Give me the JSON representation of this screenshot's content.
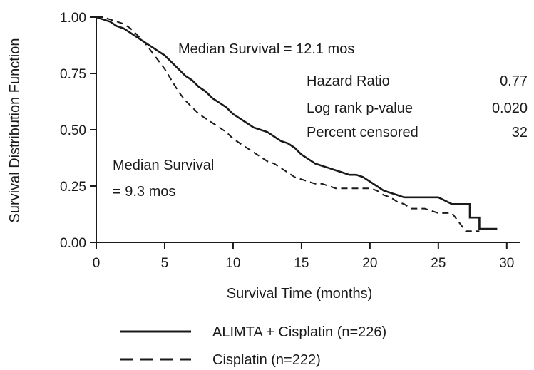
{
  "chart_data": {
    "type": "line",
    "xlabel": "Survival Time (months)",
    "ylabel": "Survival Distribution Function",
    "xlim": [
      0,
      31
    ],
    "ylim": [
      0,
      1
    ],
    "x_ticks": [
      "0",
      "5",
      "10",
      "15",
      "20",
      "25",
      "30"
    ],
    "y_ticks": [
      "0.00",
      "0.25",
      "0.50",
      "0.75",
      "1.00"
    ],
    "grid": false,
    "legend_position": "bottom",
    "annotations": {
      "median_top": "Median Survival = 12.1 mos",
      "median_bottom_line1": "Median Survival",
      "median_bottom_line2": "= 9.3 mos",
      "stats": [
        {
          "label": "Hazard Ratio",
          "value": "0.77"
        },
        {
          "label": "Log rank p-value",
          "value": "0.020"
        },
        {
          "label": "Percent censored",
          "value": "32"
        }
      ]
    },
    "series": [
      {
        "name": "ALIMTA + Cisplatin (n=226)",
        "style": "solid",
        "x": [
          0,
          0.5,
          1,
          1.5,
          2,
          2.5,
          3,
          3.5,
          4,
          4.5,
          5,
          5.5,
          6,
          6.5,
          7,
          7.5,
          8,
          8.5,
          9,
          9.5,
          10,
          10.5,
          11,
          11.5,
          12,
          12.5,
          13,
          13.5,
          14,
          14.5,
          15,
          15.5,
          16,
          16.5,
          17,
          17.5,
          18,
          18.5,
          19,
          19.5,
          20,
          20.5,
          21,
          21.5,
          22,
          22.5,
          23,
          24,
          25,
          26,
          27.3,
          27.3,
          28,
          28,
          29.3
        ],
        "y": [
          1.0,
          0.99,
          0.98,
          0.96,
          0.95,
          0.93,
          0.91,
          0.89,
          0.87,
          0.85,
          0.83,
          0.8,
          0.77,
          0.74,
          0.72,
          0.69,
          0.67,
          0.64,
          0.62,
          0.6,
          0.57,
          0.55,
          0.53,
          0.51,
          0.5,
          0.49,
          0.47,
          0.45,
          0.44,
          0.42,
          0.39,
          0.37,
          0.35,
          0.34,
          0.33,
          0.32,
          0.31,
          0.3,
          0.3,
          0.29,
          0.27,
          0.25,
          0.23,
          0.22,
          0.21,
          0.2,
          0.2,
          0.2,
          0.2,
          0.17,
          0.17,
          0.11,
          0.11,
          0.06,
          0.06
        ]
      },
      {
        "name": "Cisplatin (n=222)",
        "style": "dashed",
        "x": [
          0,
          0.5,
          1,
          1.5,
          2,
          2.5,
          3,
          3.5,
          4,
          4.5,
          5,
          5.5,
          6,
          6.5,
          7,
          7.5,
          8,
          8.5,
          9,
          9.5,
          10,
          10.5,
          11,
          11.5,
          12,
          12.5,
          13,
          13.5,
          14,
          14.5,
          15,
          15.5,
          16,
          16.5,
          17,
          17.5,
          18,
          18.5,
          19,
          19.5,
          20,
          20.5,
          21,
          21.5,
          22,
          22.5,
          23,
          24,
          25,
          26,
          26.5,
          27,
          28
        ],
        "y": [
          1.0,
          1.0,
          0.99,
          0.98,
          0.97,
          0.95,
          0.92,
          0.89,
          0.85,
          0.81,
          0.77,
          0.72,
          0.67,
          0.63,
          0.6,
          0.57,
          0.55,
          0.53,
          0.51,
          0.49,
          0.46,
          0.44,
          0.42,
          0.4,
          0.38,
          0.36,
          0.35,
          0.33,
          0.31,
          0.29,
          0.28,
          0.27,
          0.26,
          0.26,
          0.25,
          0.24,
          0.24,
          0.24,
          0.24,
          0.24,
          0.24,
          0.23,
          0.21,
          0.2,
          0.18,
          0.17,
          0.15,
          0.15,
          0.13,
          0.13,
          0.09,
          0.05,
          0.05
        ]
      }
    ]
  }
}
